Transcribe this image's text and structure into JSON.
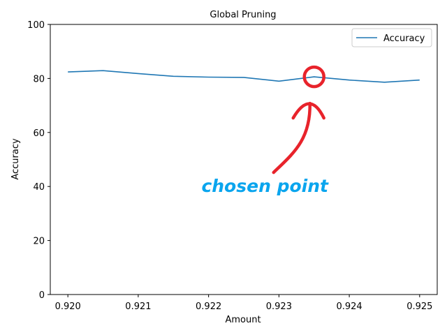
{
  "chart_data": {
    "type": "line",
    "title": "Global Pruning",
    "xlabel": "Amount",
    "ylabel": "Accuracy",
    "xlim": [
      0.91975,
      0.92525
    ],
    "ylim": [
      0,
      100
    ],
    "xticks": [
      "0.920",
      "0.921",
      "0.922",
      "0.923",
      "0.924",
      "0.925"
    ],
    "yticks": [
      "0",
      "20",
      "40",
      "60",
      "80",
      "100"
    ],
    "grid": false,
    "legend": "top-right",
    "x": [
      0.92,
      0.9205,
      0.921,
      0.9215,
      0.922,
      0.9225,
      0.923,
      0.9235,
      0.924,
      0.9245,
      0.925
    ],
    "series": [
      {
        "name": "Accuracy",
        "color": "#1f77b4",
        "values": [
          82.4,
          82.9,
          81.8,
          80.8,
          80.5,
          80.4,
          79.0,
          80.6,
          79.4,
          78.6,
          79.4
        ]
      }
    ],
    "annotation": {
      "text": "chosen point",
      "text_color": "#0aa5ee",
      "mark_color": "#e8232b",
      "target": {
        "x": 0.9235,
        "y": 80.6
      },
      "text_anchor": {
        "x": 0.9228,
        "y": 40
      }
    }
  }
}
